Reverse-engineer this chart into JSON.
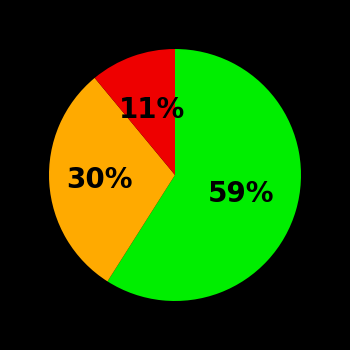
{
  "slices": [
    59,
    30,
    11
  ],
  "colors": [
    "#00ee00",
    "#ffaa00",
    "#ee0000"
  ],
  "labels": [
    "59%",
    "30%",
    "11%"
  ],
  "label_radii": [
    0.55,
    0.6,
    0.55
  ],
  "background_color": "#000000",
  "startangle": 90,
  "counterclock": false,
  "figsize": [
    3.5,
    3.5
  ],
  "dpi": 100,
  "fontsize": 20
}
